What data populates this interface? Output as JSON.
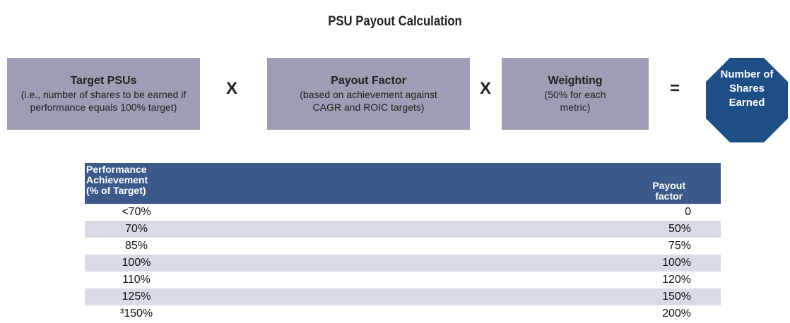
{
  "title": "PSU Payout Calculation",
  "formula": {
    "boxes": [
      {
        "heading": "Target PSUs",
        "lines": [
          "(i.e., number of shares to be earned if",
          "performance equals 100% target)"
        ]
      },
      {
        "heading": "Payout Factor",
        "lines": [
          "(based on achievement against",
          "CAGR and ROIC targets)"
        ]
      },
      {
        "heading": "Weighting",
        "lines": [
          "(50% for each",
          "metric)"
        ]
      }
    ],
    "operators": [
      "X",
      "X",
      "="
    ],
    "result": [
      "Number of",
      "Shares",
      "Earned"
    ]
  },
  "table": {
    "header": [
      [
        "Performance",
        "Achievement",
        "(% of Target)"
      ],
      [
        "Payout",
        "factor"
      ]
    ],
    "rows": [
      [
        "<70%",
        "0"
      ],
      [
        "70%",
        "50%"
      ],
      [
        "85%",
        "75%"
      ],
      [
        "100%",
        "100%"
      ],
      [
        "110%",
        "120%"
      ],
      [
        "125%",
        "150%"
      ],
      [
        "³150%",
        "200%"
      ]
    ]
  }
}
